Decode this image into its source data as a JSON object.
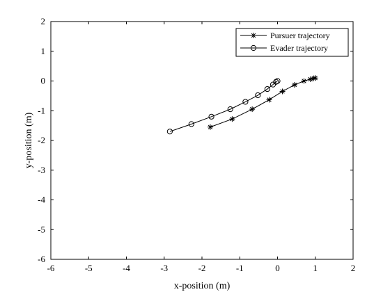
{
  "chart_data": {
    "type": "line",
    "xlabel": "x-position (m)",
    "ylabel": "y-position (m)",
    "xlim": [
      -6,
      2
    ],
    "ylim": [
      -6,
      2
    ],
    "xticks": [
      "-6",
      "-5",
      "-4",
      "-3",
      "-2",
      "-1",
      "0",
      "1",
      "2"
    ],
    "yticks": [
      "2",
      "1",
      "0",
      "-1",
      "-2",
      "-3",
      "-4",
      "-5",
      "-6"
    ],
    "grid": false,
    "legend_position": "top-right",
    "series": [
      {
        "name": "Pursuer trajectory",
        "marker": "asterisk",
        "color": "#000000",
        "x": [
          -1.78,
          -1.2,
          -0.67,
          -0.22,
          0.13,
          0.45,
          0.7,
          0.87,
          0.96,
          1.0
        ],
        "y": [
          -1.55,
          -1.28,
          -0.95,
          -0.63,
          -0.35,
          -0.13,
          0.0,
          0.06,
          0.09,
          0.1
        ]
      },
      {
        "name": "Evader trajectory",
        "marker": "circle",
        "color": "#000000",
        "x": [
          -2.85,
          -2.28,
          -1.75,
          -1.25,
          -0.85,
          -0.52,
          -0.27,
          -0.12,
          -0.04,
          0.0
        ],
        "y": [
          -1.7,
          -1.45,
          -1.2,
          -0.95,
          -0.7,
          -0.48,
          -0.27,
          -0.12,
          -0.03,
          0.0
        ]
      }
    ]
  }
}
